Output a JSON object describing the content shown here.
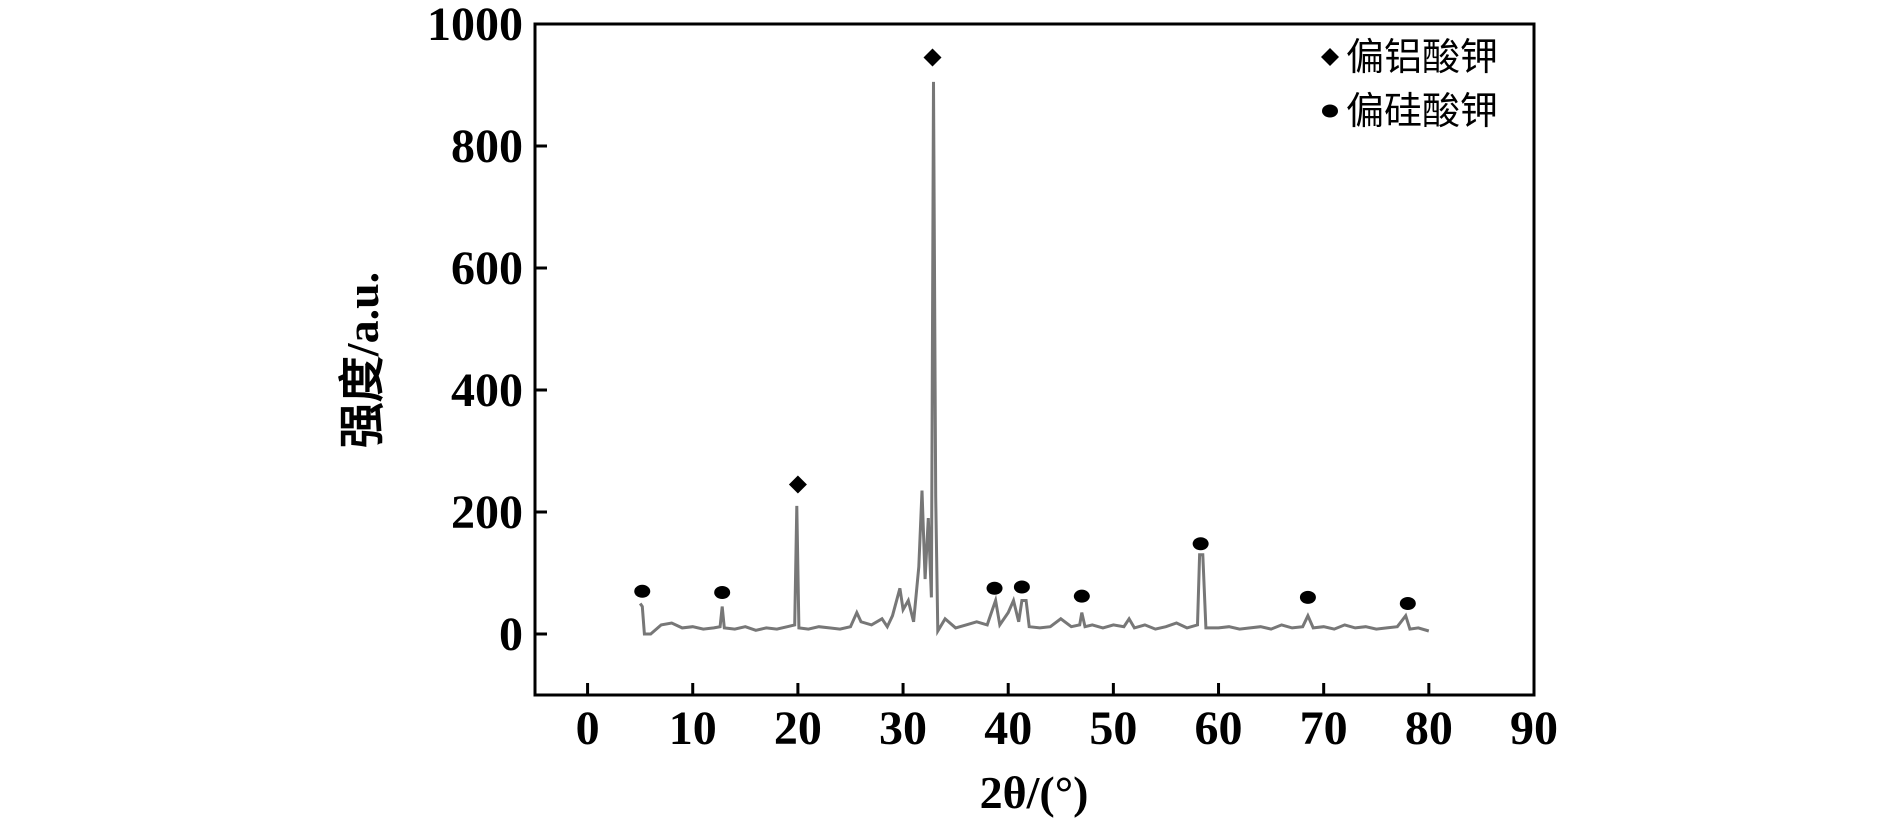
{
  "chart_data": {
    "type": "line",
    "xlabel": "2θ/(°)",
    "ylabel": "强度/a.u.",
    "color": "#777777",
    "xlim": [
      -5,
      90
    ],
    "ylim": [
      -100,
      1000
    ],
    "xticks": [
      0,
      10,
      20,
      30,
      40,
      50,
      60,
      70,
      80,
      90
    ],
    "yticks": [
      0,
      200,
      400,
      600,
      800,
      1000
    ],
    "x": [
      5.0,
      5.2,
      5.4,
      6,
      7,
      8,
      9,
      10,
      11,
      12,
      12.6,
      12.8,
      13.0,
      14,
      15,
      16,
      17,
      18,
      19,
      19.7,
      19.9,
      20.1,
      21,
      22,
      23,
      24,
      25,
      25.6,
      26,
      27,
      28,
      28.5,
      29,
      29.7,
      30,
      30.5,
      31,
      31.5,
      31.8,
      32.1,
      32.4,
      32.7,
      32.9,
      33.1,
      33.3,
      34,
      35,
      36,
      37,
      38,
      38.5,
      38.8,
      39.2,
      40,
      40.5,
      41,
      41.3,
      41.7,
      42,
      43,
      44,
      45,
      46,
      46.8,
      47,
      47.3,
      48,
      49,
      50,
      51,
      51.5,
      52,
      53,
      54,
      55,
      56,
      57,
      58,
      58.2,
      58.5,
      58.8,
      60,
      61,
      62,
      63,
      64,
      65,
      66,
      67,
      68,
      68.5,
      69,
      70,
      71,
      72,
      73,
      74,
      75,
      76,
      77,
      77.8,
      78.2,
      79,
      80
    ],
    "values": [
      50,
      45,
      0,
      0,
      15,
      18,
      10,
      12,
      8,
      10,
      12,
      45,
      10,
      8,
      12,
      6,
      10,
      8,
      12,
      15,
      210,
      10,
      8,
      12,
      10,
      8,
      12,
      35,
      20,
      15,
      25,
      12,
      30,
      75,
      40,
      55,
      20,
      110,
      235,
      90,
      190,
      60,
      905,
      225,
      5,
      25,
      10,
      15,
      20,
      15,
      40,
      55,
      15,
      35,
      55,
      20,
      55,
      55,
      12,
      10,
      12,
      25,
      12,
      15,
      35,
      12,
      15,
      10,
      15,
      12,
      25,
      10,
      15,
      8,
      12,
      18,
      10,
      15,
      130,
      130,
      10,
      10,
      12,
      8,
      10,
      12,
      8,
      15,
      10,
      12,
      30,
      10,
      12,
      8,
      15,
      10,
      12,
      8,
      10,
      12,
      30,
      8,
      10,
      5
    ],
    "markers": [
      {
        "name": "偏铝酸钾",
        "shape": "diamond",
        "color": "#000000",
        "x": [
          20,
          32.8
        ],
        "values": [
          245,
          945
        ]
      },
      {
        "name": "偏硅酸钾",
        "shape": "circle",
        "color": "#000000",
        "x": [
          5.2,
          12.8,
          38.7,
          41.3,
          47,
          58.3,
          68.5,
          78
        ],
        "values": [
          70,
          68,
          75,
          77,
          62,
          148,
          60,
          50
        ]
      }
    ],
    "legend": "upper right"
  }
}
